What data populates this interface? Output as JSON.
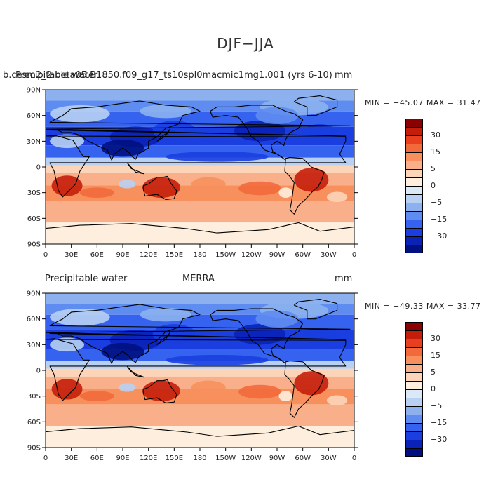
{
  "main_title": "DJF−JJA",
  "panels": [
    {
      "left_title": "Precipitable water",
      "case_title": "b.cesm2_2.beta05.B1850.f09_g17_ts10spl0macmic1mg1.001 (yrs 6-10)",
      "center_title": "",
      "units": "mm",
      "min_max": "MIN = −45.07 MAX =  31.47"
    },
    {
      "left_title": "Precipitable water",
      "case_title": "",
      "center_title": "MERRA",
      "units": "mm",
      "min_max": "MIN = −49.33 MAX =  33.77"
    }
  ],
  "colorbar": {
    "colors": [
      "#8b0000",
      "#c41e0a",
      "#e8401e",
      "#f26a3c",
      "#f7905d",
      "#f9b08a",
      "#fcd4b8",
      "#fdeede",
      "#dbe8f8",
      "#b8d0f2",
      "#8cb1ee",
      "#5f8cf0",
      "#3563f0",
      "#1a3ee0",
      "#0a22b8",
      "#001080"
    ],
    "labels": [
      "30",
      "15",
      "5",
      "0",
      "−5",
      "−15",
      "−30"
    ]
  },
  "axes": {
    "lat_labels": [
      "90N",
      "60N",
      "30N",
      "0",
      "30S",
      "60S",
      "90S"
    ],
    "lon_labels": [
      "0",
      "30E",
      "60E",
      "90E",
      "120E",
      "150E",
      "180",
      "150W",
      "120W",
      "90W",
      "60W",
      "30W",
      "0"
    ]
  },
  "chart_data": {
    "type": "heatmap",
    "variable": "Precipitable water",
    "units": "mm",
    "title": "DJF−JJA",
    "maps": [
      {
        "name": "b.cesm2_2.beta05.B1850.f09_g17_ts10spl0macmic1mg1.001 (yrs 6-10)",
        "min": -45.07,
        "max": 31.47
      },
      {
        "name": "MERRA",
        "min": -49.33,
        "max": 33.77
      }
    ],
    "colorbar_levels": [
      30,
      15,
      5,
      0,
      -5,
      -15,
      -30
    ],
    "x_range": [
      0,
      360
    ],
    "y_range": [
      -90,
      90
    ]
  }
}
